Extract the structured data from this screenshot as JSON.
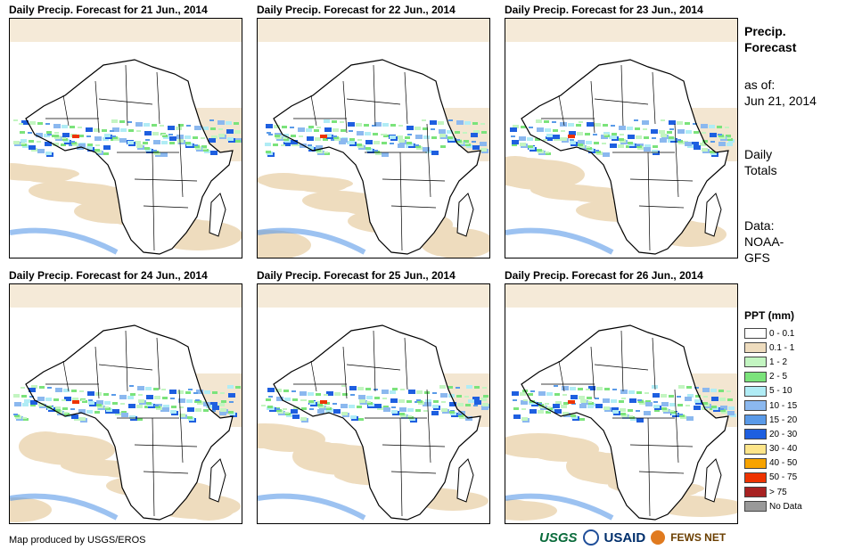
{
  "panels": [
    {
      "title": "Daily Precip. Forecast for 21 Jun., 2014"
    },
    {
      "title": "Daily Precip. Forecast for 22 Jun., 2014"
    },
    {
      "title": "Daily Precip. Forecast for 23 Jun., 2014"
    },
    {
      "title": "Daily Precip. Forecast for 24 Jun., 2014"
    },
    {
      "title": "Daily Precip. Forecast for 25 Jun., 2014"
    },
    {
      "title": "Daily Precip. Forecast for 26 Jun., 2014"
    }
  ],
  "sidebar": {
    "heading1": "Precip.",
    "heading2": "Forecast",
    "asof1": "as of:",
    "asof2": "Jun 21, 2014",
    "daily1": "Daily",
    "daily2": "Totals",
    "data1": "Data:",
    "data2": "NOAA-",
    "data3": "GFS"
  },
  "legend": {
    "title": "PPT (mm)",
    "items": [
      {
        "label": "0 - 0.1",
        "color": "#ffffff"
      },
      {
        "label": "0.1 - 1",
        "color": "#eedcbe"
      },
      {
        "label": "1 - 2",
        "color": "#c3f5c1"
      },
      {
        "label": "2 - 5",
        "color": "#7be37b"
      },
      {
        "label": "5 - 10",
        "color": "#b0ecf5"
      },
      {
        "label": "10 - 15",
        "color": "#8bb8ef"
      },
      {
        "label": "15 - 20",
        "color": "#5a9ae8"
      },
      {
        "label": "20 - 30",
        "color": "#1e5fe0"
      },
      {
        "label": "30 - 40",
        "color": "#fde58a"
      },
      {
        "label": "40 - 50",
        "color": "#f7a300"
      },
      {
        "label": "50 - 75",
        "color": "#ee3300"
      },
      {
        "label": "> 75",
        "color": "#a82222"
      },
      {
        "label": "No Data",
        "color": "#999999"
      }
    ]
  },
  "footer": {
    "credit": "Map produced by USGS/EROS",
    "usgs": "USGS",
    "usaid": "USAID",
    "fews": "FEWS NET"
  }
}
